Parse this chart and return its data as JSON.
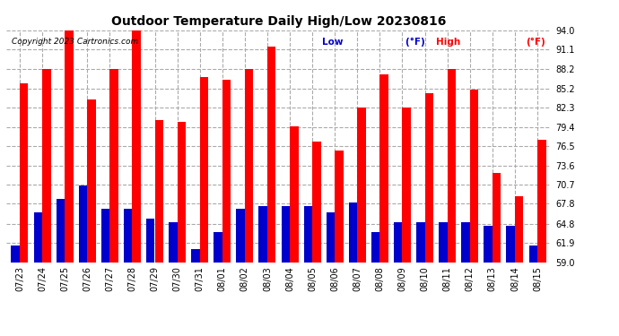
{
  "title": "Outdoor Temperature Daily High/Low 20230816",
  "copyright": "Copyright 2023 Cartronics.com",
  "legend_low": "Low",
  "legend_high": "High",
  "legend_unit": "(°F)",
  "categories": [
    "07/23",
    "07/24",
    "07/25",
    "07/26",
    "07/27",
    "07/28",
    "07/29",
    "07/30",
    "07/31",
    "08/01",
    "08/02",
    "08/03",
    "08/04",
    "08/05",
    "08/06",
    "08/07",
    "08/08",
    "08/09",
    "08/10",
    "08/11",
    "08/12",
    "08/13",
    "08/14",
    "08/15"
  ],
  "highs": [
    86.0,
    88.2,
    94.0,
    83.5,
    88.2,
    94.0,
    80.5,
    80.2,
    87.0,
    86.5,
    88.2,
    91.5,
    79.5,
    77.2,
    75.8,
    82.3,
    87.3,
    82.3,
    84.5,
    88.2,
    85.0,
    72.5,
    69.0,
    77.5
  ],
  "lows": [
    61.5,
    66.5,
    68.5,
    70.5,
    67.0,
    67.0,
    65.5,
    65.0,
    61.0,
    63.5,
    67.0,
    67.5,
    67.5,
    67.5,
    66.5,
    68.0,
    63.5,
    65.0,
    65.0,
    65.0,
    65.0,
    64.5,
    64.5,
    61.5
  ],
  "high_color": "#ff0000",
  "low_color": "#0000cc",
  "ylim_min": 59.0,
  "ylim_max": 94.0,
  "yticks": [
    59.0,
    61.9,
    64.8,
    67.8,
    70.7,
    73.6,
    76.5,
    79.4,
    82.3,
    85.2,
    88.2,
    91.1,
    94.0
  ],
  "bg_color": "#ffffff",
  "plot_bg_color": "#ffffff",
  "grid_color": "#aaaaaa",
  "title_fontsize": 10,
  "tick_fontsize": 7,
  "bar_width": 0.38
}
